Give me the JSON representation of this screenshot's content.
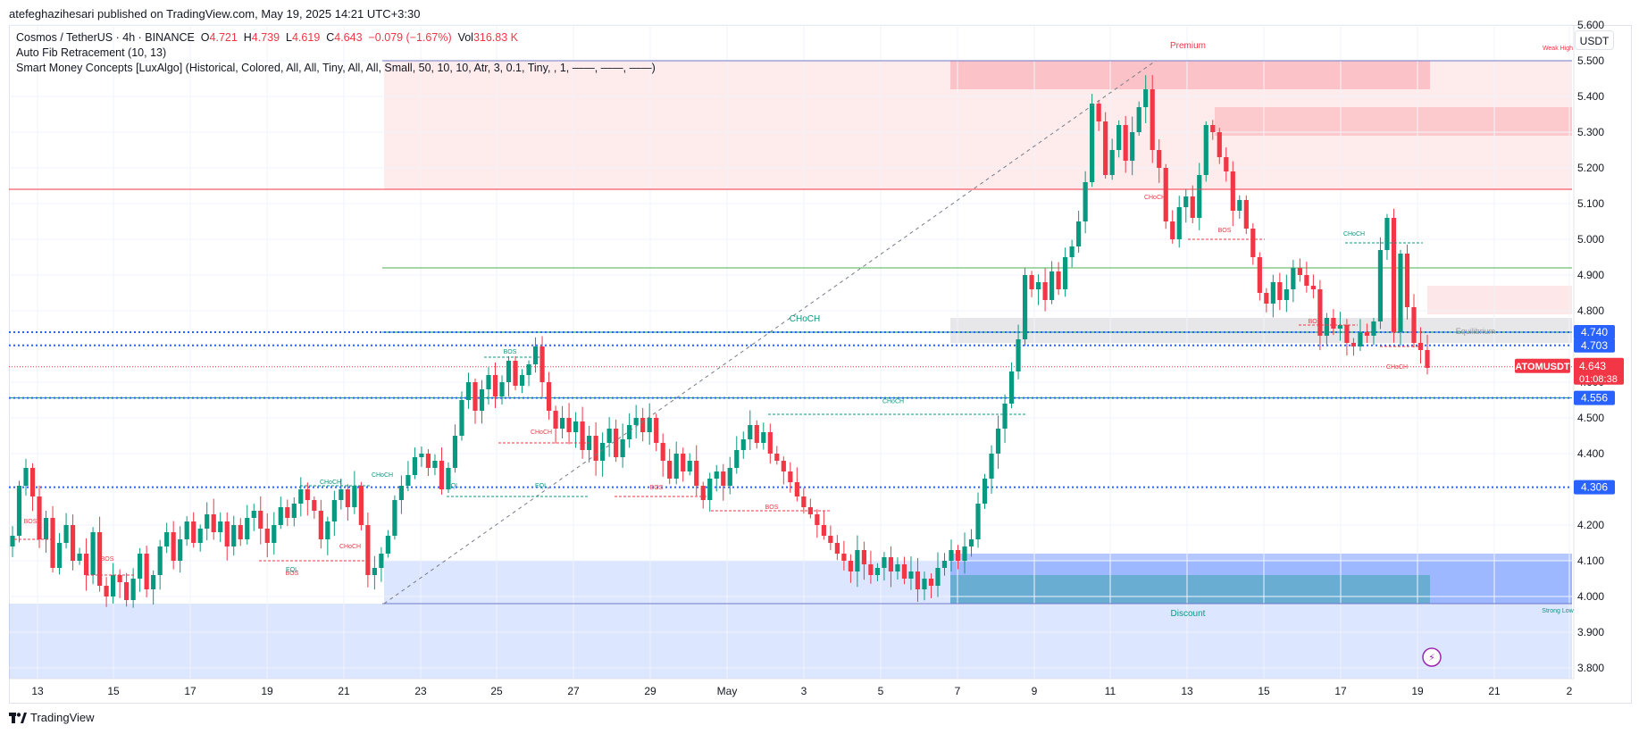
{
  "publisher": "atefeghazihesari published on TradingView.com, May 19, 2025 14:21 UTC+3:30",
  "legend": {
    "symbol": "Cosmos / TetherUS · 4h · BINANCE",
    "o_label": "O",
    "o": "4.721",
    "h_label": "H",
    "h": "4.739",
    "l_label": "L",
    "l": "4.619",
    "c_label": "C",
    "c": "4.643",
    "change": "−0.079 (−1.67%)",
    "vol_label": "Vol",
    "vol": "316.83 K",
    "indicator1": "Auto Fib Retracement (10, 13)",
    "indicator2": "Smart Money Concepts [LuxAlgo] (Historical, Colored, All, All, Tiny, All, All, Small, 50, 10, 10, Atr, 3, 0.1, Tiny, , 1, ——, ——, ——)"
  },
  "currency": "USDT",
  "footer": "TradingView",
  "colors": {
    "up": "#089981",
    "down": "#f23645",
    "blue": "#2962ff",
    "teal": "#089981"
  },
  "chart_data": {
    "type": "candlestick",
    "symbol": "ATOMUSDT",
    "interval": "4h",
    "x_ticks": [
      "13",
      "15",
      "17",
      "19",
      "21",
      "23",
      "25",
      "27",
      "29",
      "May",
      "3",
      "5",
      "7",
      "9",
      "11",
      "13",
      "15",
      "17",
      "19",
      "21",
      "2"
    ],
    "y_ticks": [
      "5.600",
      "5.500",
      "5.400",
      "5.300",
      "5.200",
      "5.100",
      "5.000",
      "4.900",
      "4.800",
      "4.700",
      "4.600",
      "4.500",
      "4.400",
      "4.300",
      "4.200",
      "4.100",
      "4.000",
      "3.900",
      "3.800"
    ],
    "ylim": [
      3.77,
      5.6
    ],
    "close_path": [
      4.17,
      4.31,
      4.36,
      4.28,
      4.16,
      4.22,
      4.08,
      4.15,
      4.2,
      4.1,
      4.12,
      4.06,
      4.18,
      4.03,
      4.0,
      4.06,
      4.04,
      3.99,
      4.05,
      4.12,
      4.02,
      4.06,
      4.14,
      4.18,
      4.1,
      4.16,
      4.21,
      4.15,
      4.19,
      4.23,
      4.18,
      4.21,
      4.14,
      4.2,
      4.16,
      4.22,
      4.24,
      4.19,
      4.15,
      4.2,
      4.25,
      4.22,
      4.26,
      4.3,
      4.27,
      4.24,
      4.16,
      4.21,
      4.27,
      4.3,
      4.25,
      4.31,
      4.2,
      4.06,
      4.08,
      4.12,
      4.17,
      4.27,
      4.31,
      4.34,
      4.39,
      4.4,
      4.36,
      4.38,
      4.3,
      4.36,
      4.45,
      4.55,
      4.6,
      4.52,
      4.58,
      4.62,
      4.56,
      4.6,
      4.66,
      4.59,
      4.62,
      4.65,
      4.7,
      4.6,
      4.52,
      4.47,
      4.5,
      4.46,
      4.49,
      4.41,
      4.45,
      4.38,
      4.43,
      4.47,
      4.39,
      4.44,
      4.48,
      4.5,
      4.46,
      4.5,
      4.43,
      4.38,
      4.33,
      4.4,
      4.35,
      4.38,
      4.31,
      4.27,
      4.33,
      4.35,
      4.31,
      4.36,
      4.41,
      4.44,
      4.48,
      4.43,
      4.46,
      4.4,
      4.38,
      4.35,
      4.32,
      4.28,
      4.25,
      4.23,
      4.2,
      4.17,
      4.15,
      4.12,
      4.1,
      4.07,
      4.13,
      4.09,
      4.06,
      4.08,
      4.11,
      4.07,
      4.09,
      4.05,
      4.07,
      4.02,
      4.05,
      4.03,
      4.08,
      4.1,
      4.13,
      4.1,
      4.14,
      4.16,
      4.26,
      4.33,
      4.4,
      4.47,
      4.54,
      4.63,
      4.72,
      4.9,
      4.86,
      4.88,
      4.83,
      4.91,
      4.86,
      4.95,
      4.98,
      5.05,
      5.16,
      5.38,
      5.33,
      5.18,
      5.25,
      5.32,
      5.22,
      5.3,
      5.37,
      5.42,
      5.25,
      5.2,
      5.05,
      5.0,
      5.09,
      5.12,
      5.06,
      5.18,
      5.32,
      5.3,
      5.23,
      5.19,
      5.08,
      5.11,
      5.03,
      4.95,
      4.85,
      4.82,
      4.88,
      4.83,
      4.86,
      4.92,
      4.9,
      4.87,
      4.86,
      4.73,
      4.78,
      4.75,
      4.76,
      4.71,
      4.7,
      4.74,
      4.73,
      4.77,
      4.97,
      5.06,
      4.74,
      4.96,
      4.81,
      4.71,
      4.69,
      4.64
    ],
    "levels": [
      {
        "price": 5.5,
        "color": "#6f79c9",
        "style": "solid"
      },
      {
        "price": 5.14,
        "color": "#f23645",
        "style": "solid"
      },
      {
        "price": 4.92,
        "color": "#4caf50",
        "style": "solid"
      },
      {
        "price": 4.74,
        "color": "#089981",
        "style": "solid"
      },
      {
        "price": 4.556,
        "color": "#089981",
        "style": "solid"
      },
      {
        "price": 3.98,
        "color": "#6f79c9",
        "style": "solid"
      }
    ],
    "dotted_levels": [
      {
        "price": 4.74,
        "color": "#2962ff",
        "label": "4.740"
      },
      {
        "price": 4.703,
        "color": "#2962ff",
        "label": "4.703"
      },
      {
        "price": 4.556,
        "color": "#2962ff",
        "label": "4.556"
      },
      {
        "price": 4.306,
        "color": "#2962ff",
        "label": "4.306"
      }
    ],
    "last_price": {
      "label": "ATOMUSDT",
      "price": "4.643",
      "countdown": "01:08:38"
    },
    "annotations": [
      "Premium",
      "Discount",
      "Equilibrium",
      "Weak High",
      "Strong Low",
      "CHoCH",
      "BOS",
      "EQL"
    ]
  }
}
